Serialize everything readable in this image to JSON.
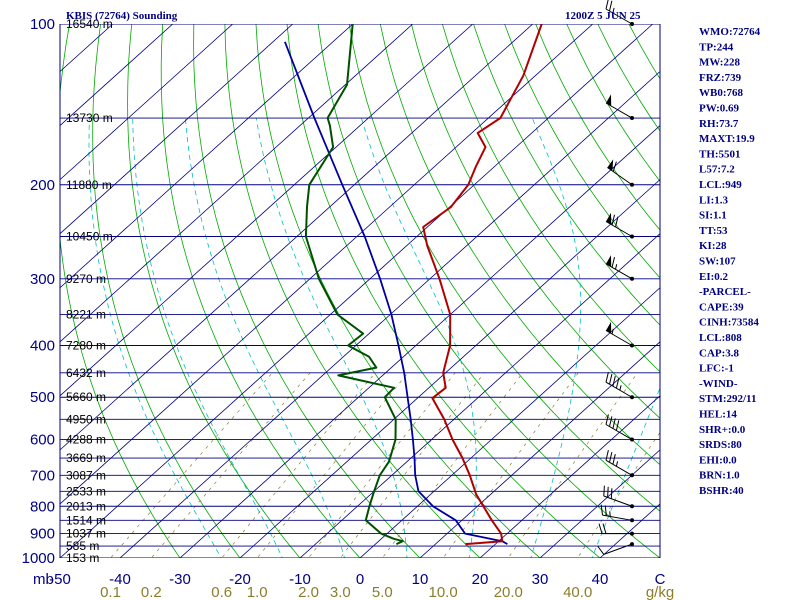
{
  "header": {
    "station": "KBIS (72764) Sounding",
    "time": "1200Z  5 JUN 25"
  },
  "colors": {
    "isobar": "#000080",
    "isotherm": "#000080",
    "dry_adiabat": "#00aa00",
    "moist_adiabat": "#00c0c0",
    "mixing_ratio": "#8B7D2B",
    "temperature": "#b00000",
    "dewpoint": "#005000",
    "parcel": "#0000a0",
    "wind_barb": "#000000",
    "index_text": "#000080"
  },
  "chart_data": {
    "type": "skew-t",
    "p_range": [
      100,
      1000
    ],
    "t_range_at_1000": [
      -50,
      50
    ],
    "pressure_labels": [
      100,
      200,
      300,
      400,
      500,
      600,
      700,
      800,
      900,
      1000
    ],
    "pressure_unit_label": "mb",
    "temperature_labels": [
      "-50",
      "-40",
      "-30",
      "-20",
      "-10",
      "0",
      "10",
      "20",
      "30",
      "40",
      "C"
    ],
    "mixing_ratio_labels": [
      "0.1",
      "0.2",
      "0.6",
      "1.0",
      "2.0",
      "3.0",
      "5.0",
      "10.0",
      "20.0",
      "40.0",
      "g/kg"
    ],
    "mixing_ratio_values": [
      0.1,
      0.2,
      0.6,
      1.0,
      2.0,
      3.0,
      5.0,
      10.0,
      20.0,
      40.0
    ],
    "height_labels": [
      {
        "p": 100,
        "text": "16540 m"
      },
      {
        "p": 150,
        "text": "13730 m"
      },
      {
        "p": 200,
        "text": "11880 m"
      },
      {
        "p": 250,
        "text": "10450 m"
      },
      {
        "p": 300,
        "text": "9270 m"
      },
      {
        "p": 350,
        "text": "8221 m"
      },
      {
        "p": 400,
        "text": "7280 m"
      },
      {
        "p": 450,
        "text": "6432 m"
      },
      {
        "p": 500,
        "text": "5660 m"
      },
      {
        "p": 550,
        "text": "4950 m"
      },
      {
        "p": 600,
        "text": "4288 m"
      },
      {
        "p": 650,
        "text": "3669 m"
      },
      {
        "p": 700,
        "text": "3087 m"
      },
      {
        "p": 750,
        "text": "2533 m"
      },
      {
        "p": 800,
        "text": "2013 m"
      },
      {
        "p": 850,
        "text": "1514 m"
      },
      {
        "p": 900,
        "text": "1037 m"
      },
      {
        "p": 950,
        "text": "585 m"
      },
      {
        "p": 1000,
        "text": "153 m"
      }
    ],
    "temperature_profile": [
      [
        942,
        15
      ],
      [
        930,
        20.6
      ],
      [
        900,
        19
      ],
      [
        850,
        15
      ],
      [
        800,
        11
      ],
      [
        760,
        7.6
      ],
      [
        700,
        3
      ],
      [
        650,
        -1.4
      ],
      [
        600,
        -6.5
      ],
      [
        550,
        -11.6
      ],
      [
        502,
        -17.5
      ],
      [
        480,
        -17.2
      ],
      [
        450,
        -20.4
      ],
      [
        400,
        -24.3
      ],
      [
        350,
        -30
      ],
      [
        300,
        -38.4
      ],
      [
        260,
        -46.6
      ],
      [
        240,
        -50.7
      ],
      [
        220,
        -49.8
      ],
      [
        200,
        -51
      ],
      [
        185,
        -53.1
      ],
      [
        170,
        -55.1
      ],
      [
        160,
        -59
      ],
      [
        150,
        -58
      ],
      [
        125,
        -62
      ],
      [
        100,
        -68.5
      ]
    ],
    "dewpoint_profile": [
      [
        942,
        3.5
      ],
      [
        930,
        4
      ],
      [
        920,
        2
      ],
      [
        900,
        -1
      ],
      [
        850,
        -6
      ],
      [
        800,
        -8
      ],
      [
        750,
        -10
      ],
      [
        700,
        -12
      ],
      [
        660,
        -13
      ],
      [
        600,
        -16
      ],
      [
        550,
        -19.7
      ],
      [
        500,
        -25.6
      ],
      [
        480,
        -25.8
      ],
      [
        455,
        -37.4
      ],
      [
        440,
        -32.5
      ],
      [
        420,
        -35.7
      ],
      [
        400,
        -41.3
      ],
      [
        380,
        -41
      ],
      [
        350,
        -48.8
      ],
      [
        300,
        -58.5
      ],
      [
        250,
        -68.5
      ],
      [
        220,
        -73.8
      ],
      [
        200,
        -77.5
      ],
      [
        170,
        -80.5
      ],
      [
        155,
        -85
      ],
      [
        150,
        -86.8
      ],
      [
        130,
        -89.7
      ],
      [
        100,
        -100
      ]
    ],
    "parcel_profile": [
      [
        942,
        22
      ],
      [
        930,
        20.6
      ],
      [
        900,
        13
      ],
      [
        850,
        9
      ],
      [
        800,
        2.6
      ],
      [
        750,
        -2.6
      ],
      [
        700,
        -6.1
      ],
      [
        650,
        -9.4
      ],
      [
        600,
        -13.1
      ],
      [
        550,
        -17.2
      ],
      [
        500,
        -21.8
      ],
      [
        450,
        -26.9
      ],
      [
        400,
        -32.9
      ],
      [
        350,
        -39.8
      ],
      [
        300,
        -48.3
      ],
      [
        250,
        -58.7
      ],
      [
        200,
        -72
      ],
      [
        150,
        -89
      ],
      [
        108,
        -108
      ]
    ],
    "wind_barbs": [
      {
        "p": 942,
        "dir": 250,
        "spd": 10
      },
      {
        "p": 900,
        "dir": 270,
        "spd": 20
      },
      {
        "p": 850,
        "dir": 280,
        "spd": 25
      },
      {
        "p": 800,
        "dir": 290,
        "spd": 30
      },
      {
        "p": 700,
        "dir": 300,
        "spd": 35
      },
      {
        "p": 600,
        "dir": 300,
        "spd": 40
      },
      {
        "p": 500,
        "dir": 300,
        "spd": 45
      },
      {
        "p": 400,
        "dir": 300,
        "spd": 55
      },
      {
        "p": 300,
        "dir": 300,
        "spd": 65
      },
      {
        "p": 250,
        "dir": 300,
        "spd": 70
      },
      {
        "p": 200,
        "dir": 305,
        "spd": 60
      },
      {
        "p": 150,
        "dir": 300,
        "spd": 50
      },
      {
        "p": 100,
        "dir": 300,
        "spd": 25
      }
    ]
  },
  "indices": [
    "WMO:72764",
    "TP:244",
    "MW:228",
    "FRZ:739",
    "WB0:768",
    "PW:0.69",
    "RH:73.7",
    "MAXT:19.9",
    "TH:5501",
    "L57:7.2",
    "LCL:949",
    "LI:1.3",
    "SI:1.1",
    "TT:53",
    "KI:28",
    "SW:107",
    "EI:0.2",
    "-PARCEL-",
    "CAPE:39",
    "CINH:73584",
    "LCL:808",
    "CAP:3.8",
    "LFC:-1",
    "-WIND-",
    "STM:292/11",
    "HEL:14",
    "SHR+:0.0",
    "SRDS:80",
    "EHI:0.0",
    "BRN:1.0",
    "BSHR:40"
  ]
}
